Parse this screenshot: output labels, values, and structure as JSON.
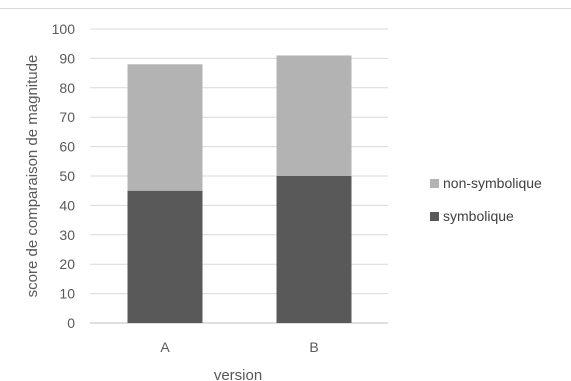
{
  "chart_data": {
    "type": "bar",
    "stacked": true,
    "categories": [
      "A",
      "B"
    ],
    "series": [
      {
        "name": "symbolique",
        "values": [
          45,
          50
        ],
        "color": "#595959"
      },
      {
        "name": "non-symbolique",
        "values": [
          43,
          41
        ],
        "color": "#b3b3b3"
      }
    ],
    "xlabel": "version",
    "ylabel": "score de comparaison de magnitude",
    "ylim": [
      0,
      100
    ],
    "yticks": [
      0,
      10,
      20,
      30,
      40,
      50,
      60,
      70,
      80,
      90,
      100
    ],
    "grid": true,
    "legend_position": "right",
    "legend_order": [
      "non-symbolique",
      "symbolique"
    ]
  }
}
